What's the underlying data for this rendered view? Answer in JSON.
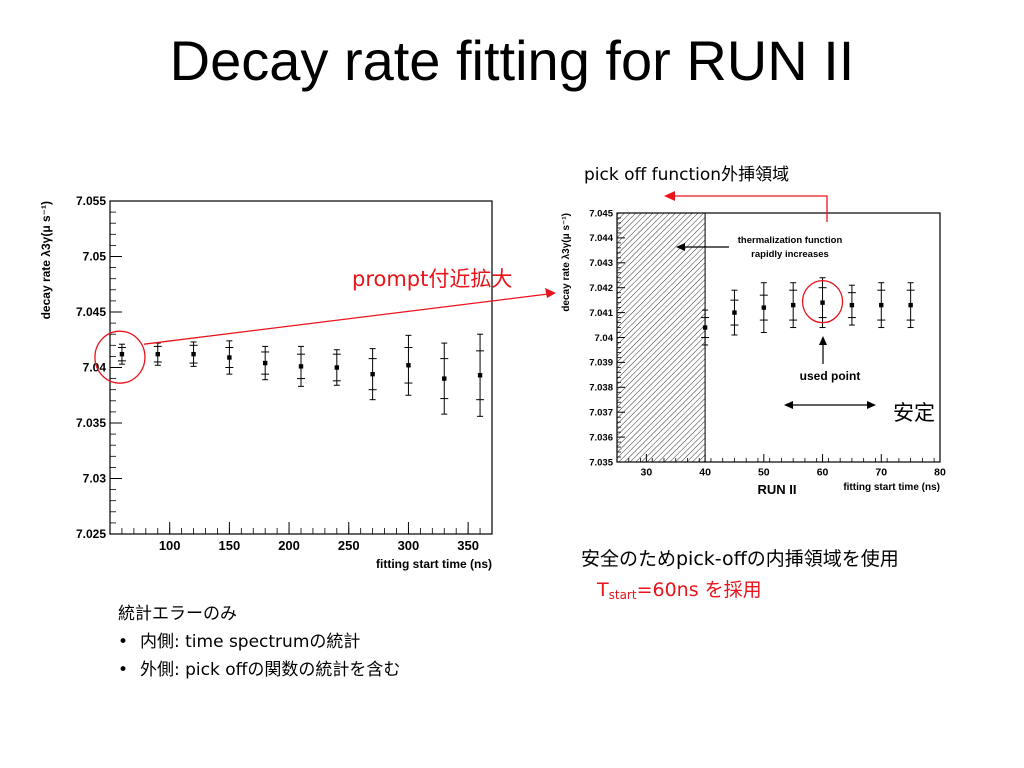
{
  "slide": {
    "title": "Decay rate fitting for RUN II"
  },
  "annotations": {
    "pickoff_extrapolation": "pick off function外挿領域",
    "prompt_zoom": "prompt付近拡大",
    "stable": "安定",
    "safety_note": "安全のためpick-offの内挿領域を使用",
    "tstart_prefix": "T",
    "tstart_sub": "start",
    "tstart_value": "=60ns を採用"
  },
  "notes": {
    "heading": "統計エラーのみ",
    "bullets": [
      "内側: time spectrumの統計",
      "外側: pick offの関数の統計を含む"
    ]
  },
  "chart_data": [
    {
      "type": "scatter",
      "title": "",
      "xlabel": "fitting start time (ns)",
      "ylabel": "decay rate λ3γ(μ s⁻¹)",
      "xlim": [
        50,
        370
      ],
      "ylim": [
        7.025,
        7.055
      ],
      "x_ticks": [
        100,
        150,
        200,
        250,
        300,
        350
      ],
      "y_ticks": [
        7.025,
        7.03,
        7.035,
        7.04,
        7.045,
        7.05,
        7.055
      ],
      "x": [
        60,
        90,
        120,
        150,
        180,
        210,
        240,
        270,
        300,
        330,
        360
      ],
      "y": [
        7.0412,
        7.0412,
        7.0412,
        7.0409,
        7.0404,
        7.0401,
        7.04,
        7.0394,
        7.0402,
        7.039,
        7.0393
      ],
      "err_inner": [
        0.0006,
        0.0007,
        0.0008,
        0.0009,
        0.001,
        0.0011,
        0.0012,
        0.0014,
        0.0016,
        0.0018,
        0.0022
      ],
      "err_outer": [
        0.0009,
        0.001,
        0.0011,
        0.0015,
        0.0015,
        0.0018,
        0.0016,
        0.0023,
        0.0027,
        0.0032,
        0.0037
      ],
      "highlight_index": 0
    },
    {
      "type": "scatter",
      "title": "RUN II",
      "xlabel": "fitting start time (ns)",
      "ylabel": "decay rate λ3γ(μ s⁻¹)",
      "xlim": [
        25,
        80
      ],
      "ylim": [
        7.035,
        7.045
      ],
      "x_ticks": [
        30,
        40,
        50,
        60,
        70,
        80
      ],
      "y_ticks": [
        7.035,
        7.036,
        7.037,
        7.038,
        7.039,
        7.04,
        7.041,
        7.042,
        7.043,
        7.044,
        7.045
      ],
      "x": [
        40,
        45,
        50,
        55,
        60,
        65,
        70,
        75
      ],
      "y": [
        7.0404,
        7.041,
        7.0412,
        7.0413,
        7.0414,
        7.0413,
        7.0413,
        7.0413
      ],
      "err_inner": [
        0.0004,
        0.0005,
        0.0005,
        0.0006,
        0.0006,
        0.0005,
        0.0006,
        0.0006
      ],
      "err_outer": [
        0.0007,
        0.0009,
        0.001,
        0.0009,
        0.001,
        0.0008,
        0.0009,
        0.0009
      ],
      "hatched_region": [
        25,
        40
      ],
      "highlight_index": 4,
      "annotations": {
        "thermalization": [
          "thermalization function",
          "rapidly increases"
        ],
        "used_point": "used point"
      }
    }
  ]
}
